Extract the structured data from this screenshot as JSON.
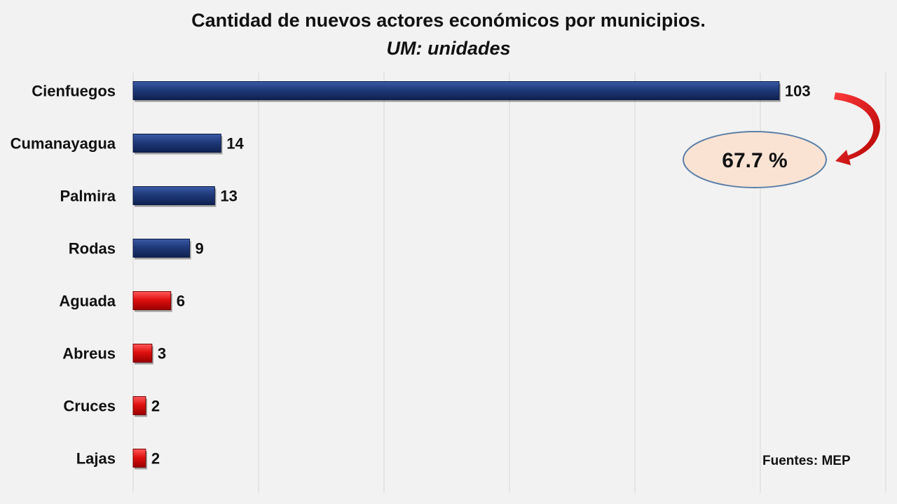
{
  "chart_data": {
    "type": "bar",
    "orientation": "horizontal",
    "title": "Cantidad de nuevos actores económicos por municipios.",
    "subtitle": "UM: unidades",
    "categories": [
      "Cienfuegos",
      "Cumanayagua",
      "Palmira",
      "Rodas",
      "Aguada",
      "Abreus",
      "Cruces",
      "Lajas"
    ],
    "values": [
      103,
      14,
      13,
      9,
      6,
      3,
      2,
      2
    ],
    "bar_colors": [
      "#1f3a7a",
      "#1f3a7a",
      "#1f3a7a",
      "#1f3a7a",
      "#e01010",
      "#e01010",
      "#e01010",
      "#e01010"
    ],
    "xlim": [
      0,
      120
    ],
    "grid": true,
    "callout": {
      "text": "67.7 %",
      "fill": "#fbe3d4",
      "stroke": "#5b7fa6",
      "arrow_color": "#e01010"
    }
  },
  "source": "Fuentes: MEP"
}
